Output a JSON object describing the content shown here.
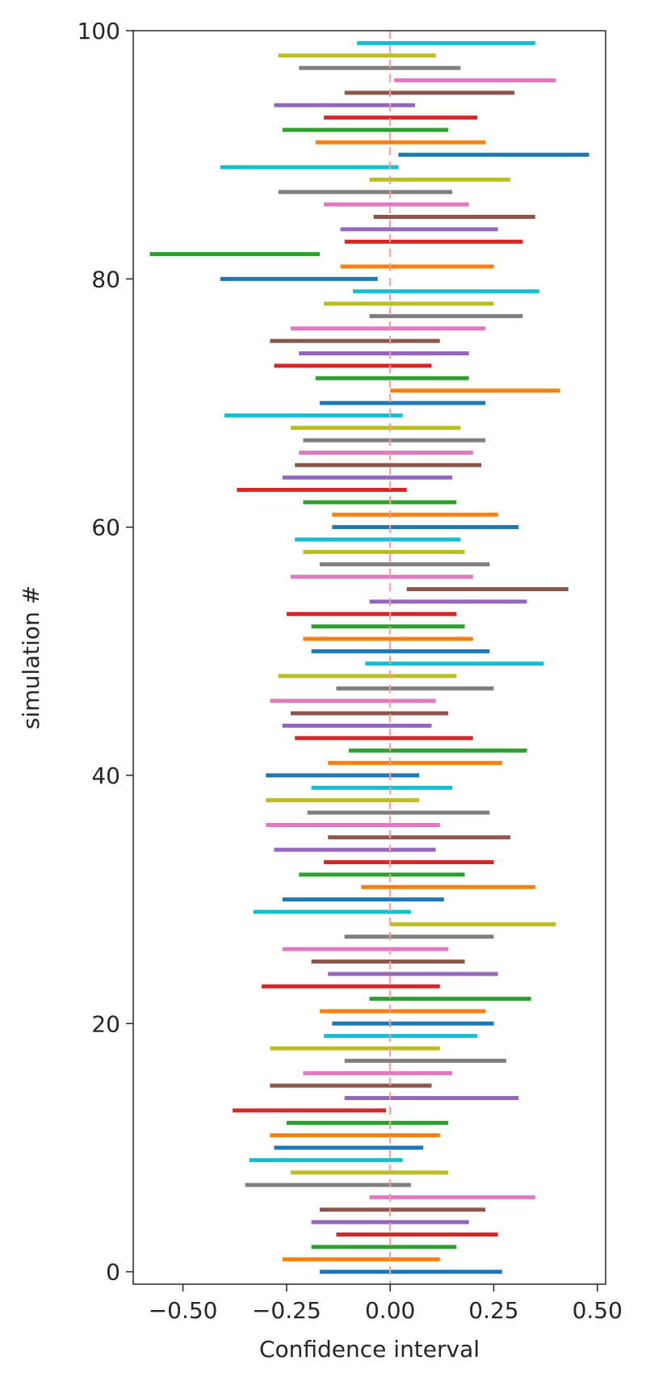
{
  "chart_data": {
    "type": "interval",
    "xlabel": "Confidence interval",
    "ylabel": "simulation #",
    "xlim": [
      -0.62,
      0.52
    ],
    "ylim": [
      -1,
      100
    ],
    "x_ticks": [
      -0.5,
      -0.25,
      0.0,
      0.25,
      0.5
    ],
    "x_tick_labels": [
      "−0.50",
      "−0.25",
      "0.00",
      "0.25",
      "0.50"
    ],
    "y_ticks": [
      0,
      20,
      40,
      60,
      80,
      100
    ],
    "y_tick_labels": [
      "0",
      "20",
      "40",
      "60",
      "80",
      "100"
    ],
    "reference_line": {
      "x": 0.0,
      "color": "#ff9999",
      "style": "dashed"
    },
    "colors": [
      "#1f77b4",
      "#ff7f0e",
      "#2ca02c",
      "#d62728",
      "#9467bd",
      "#8c564b",
      "#e377c2",
      "#7f7f7f",
      "#bcbd22",
      "#17becf"
    ],
    "color_cycle": "simulation index mod 10",
    "intervals": [
      [
        -0.17,
        0.27
      ],
      [
        -0.26,
        0.12
      ],
      [
        -0.19,
        0.16
      ],
      [
        -0.13,
        0.26
      ],
      [
        -0.19,
        0.19
      ],
      [
        -0.17,
        0.23
      ],
      [
        -0.05,
        0.35
      ],
      [
        -0.35,
        0.05
      ],
      [
        -0.24,
        0.14
      ],
      [
        -0.34,
        0.03
      ],
      [
        -0.28,
        0.08
      ],
      [
        -0.29,
        0.12
      ],
      [
        -0.25,
        0.14
      ],
      [
        -0.38,
        -0.01
      ],
      [
        -0.11,
        0.31
      ],
      [
        -0.29,
        0.1
      ],
      [
        -0.21,
        0.15
      ],
      [
        -0.11,
        0.28
      ],
      [
        -0.29,
        0.12
      ],
      [
        -0.16,
        0.21
      ],
      [
        -0.14,
        0.25
      ],
      [
        -0.17,
        0.23
      ],
      [
        -0.05,
        0.34
      ],
      [
        -0.31,
        0.12
      ],
      [
        -0.15,
        0.26
      ],
      [
        -0.19,
        0.18
      ],
      [
        -0.26,
        0.14
      ],
      [
        -0.11,
        0.25
      ],
      [
        0.0,
        0.4
      ],
      [
        -0.33,
        0.05
      ],
      [
        -0.26,
        0.13
      ],
      [
        -0.07,
        0.35
      ],
      [
        -0.22,
        0.18
      ],
      [
        -0.16,
        0.25
      ],
      [
        -0.28,
        0.11
      ],
      [
        -0.15,
        0.29
      ],
      [
        -0.3,
        0.12
      ],
      [
        -0.2,
        0.24
      ],
      [
        -0.3,
        0.07
      ],
      [
        -0.19,
        0.15
      ],
      [
        -0.3,
        0.07
      ],
      [
        -0.15,
        0.27
      ],
      [
        -0.1,
        0.33
      ],
      [
        -0.23,
        0.2
      ],
      [
        -0.26,
        0.1
      ],
      [
        -0.24,
        0.14
      ],
      [
        -0.29,
        0.11
      ],
      [
        -0.13,
        0.25
      ],
      [
        -0.27,
        0.16
      ],
      [
        -0.06,
        0.37
      ],
      [
        -0.19,
        0.24
      ],
      [
        -0.21,
        0.2
      ],
      [
        -0.19,
        0.18
      ],
      [
        -0.25,
        0.16
      ],
      [
        -0.05,
        0.33
      ],
      [
        0.04,
        0.43
      ],
      [
        -0.24,
        0.2
      ],
      [
        -0.17,
        0.24
      ],
      [
        -0.21,
        0.18
      ],
      [
        -0.23,
        0.17
      ],
      [
        -0.14,
        0.31
      ],
      [
        -0.14,
        0.26
      ],
      [
        -0.21,
        0.16
      ],
      [
        -0.37,
        0.04
      ],
      [
        -0.26,
        0.15
      ],
      [
        -0.23,
        0.22
      ],
      [
        -0.22,
        0.2
      ],
      [
        -0.21,
        0.23
      ],
      [
        -0.24,
        0.17
      ],
      [
        -0.4,
        0.03
      ],
      [
        -0.17,
        0.23
      ],
      [
        0.0,
        0.41
      ],
      [
        -0.18,
        0.19
      ],
      [
        -0.28,
        0.1
      ],
      [
        -0.22,
        0.19
      ],
      [
        -0.29,
        0.12
      ],
      [
        -0.24,
        0.23
      ],
      [
        -0.05,
        0.32
      ],
      [
        -0.16,
        0.25
      ],
      [
        -0.09,
        0.36
      ],
      [
        -0.41,
        -0.03
      ],
      [
        -0.12,
        0.25
      ],
      [
        -0.58,
        -0.17
      ],
      [
        -0.11,
        0.32
      ],
      [
        -0.12,
        0.26
      ],
      [
        -0.04,
        0.35
      ],
      [
        -0.16,
        0.19
      ],
      [
        -0.27,
        0.15
      ],
      [
        -0.05,
        0.29
      ],
      [
        -0.41,
        0.02
      ],
      [
        0.02,
        0.48
      ],
      [
        -0.18,
        0.23
      ],
      [
        -0.26,
        0.14
      ],
      [
        -0.16,
        0.21
      ],
      [
        -0.28,
        0.06
      ],
      [
        -0.11,
        0.3
      ],
      [
        0.01,
        0.4
      ],
      [
        -0.22,
        0.17
      ],
      [
        -0.27,
        0.11
      ],
      [
        -0.08,
        0.35
      ]
    ]
  }
}
